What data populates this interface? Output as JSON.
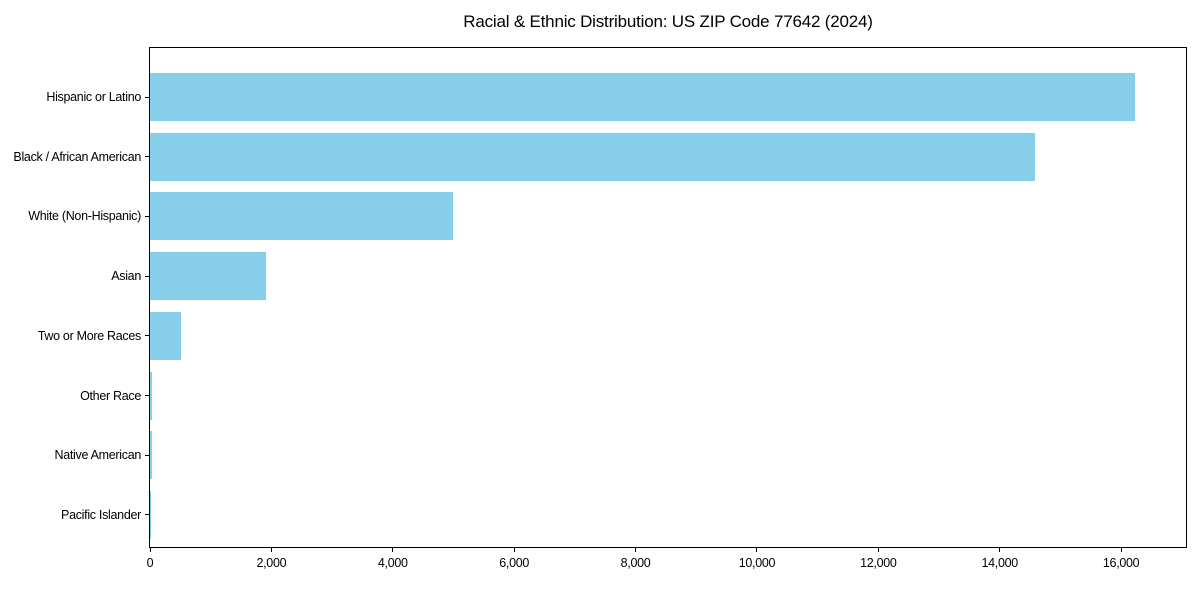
{
  "figure": {
    "background": "#ffffff"
  },
  "chart_data": {
    "type": "bar",
    "orientation": "horizontal",
    "title": "Racial & Ethnic Distribution: US ZIP Code 77642 (2024)",
    "xlabel": "",
    "ylabel": "",
    "categories": [
      "Hispanic or Latino",
      "Black / African American",
      "White (Non-Hispanic)",
      "Asian",
      "Two or More Races",
      "Other Race",
      "Native American",
      "Pacific Islander"
    ],
    "values": [
      16230,
      14580,
      5000,
      1905,
      510,
      30,
      25,
      10
    ],
    "xlim": [
      0,
      17069
    ],
    "xticks": [
      0,
      2000,
      4000,
      6000,
      8000,
      10000,
      12000,
      14000,
      16000
    ],
    "xtick_labels": [
      "0",
      "2,000",
      "4,000",
      "6,000",
      "8,000",
      "10,000",
      "12,000",
      "14,000",
      "16,000"
    ],
    "bar_color": "#87CEEB",
    "axis_color": "#000000",
    "text_color": "#000000",
    "grid": false,
    "legend": null
  }
}
